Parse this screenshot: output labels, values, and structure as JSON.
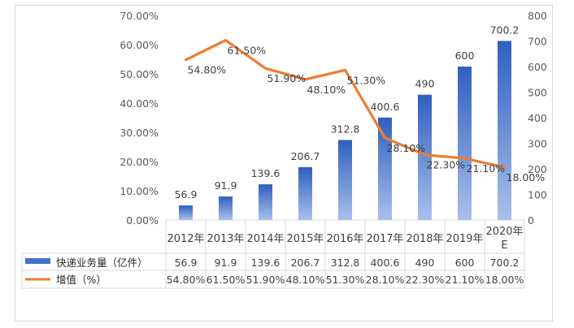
{
  "chart_data": {
    "type": "bar",
    "categories": [
      "2012年",
      "2013年",
      "2014年",
      "2015年",
      "2016年",
      "2017年",
      "2018年",
      "2019年",
      "2020年E"
    ],
    "series": [
      {
        "name": "快递业务量（亿件）",
        "type": "bar",
        "axis": "right",
        "values": [
          56.9,
          91.9,
          139.6,
          206.7,
          312.8,
          400.6,
          490,
          600,
          700.2
        ],
        "labels": [
          "56.9",
          "91.9",
          "139.6",
          "206.7",
          "312.8",
          "400.6",
          "490",
          "600",
          "700.2"
        ],
        "color": "#4472c4"
      },
      {
        "name": "增值（%）",
        "type": "line",
        "axis": "left",
        "values": [
          0.548,
          0.615,
          0.519,
          0.481,
          0.513,
          0.281,
          0.223,
          0.211,
          0.18
        ],
        "labels": [
          "54.80%",
          "61.50%",
          "51.90%",
          "48.10%",
          "51.30%",
          "28.10%",
          "22.30%",
          "21.10%",
          "18.00%"
        ],
        "color": "#ed7d31"
      }
    ],
    "y_left": {
      "range": [
        0,
        0.7
      ],
      "ticks": [
        "0.00%",
        "10.00%",
        "20.00%",
        "30.00%",
        "40.00%",
        "50.00%",
        "60.00%",
        "70.00%"
      ]
    },
    "y_right": {
      "range": [
        0,
        800
      ],
      "ticks": [
        "0",
        "100",
        "200",
        "300",
        "400",
        "500",
        "600",
        "700",
        "800"
      ]
    },
    "grid": false,
    "legend": "data-table",
    "data_table": true
  }
}
